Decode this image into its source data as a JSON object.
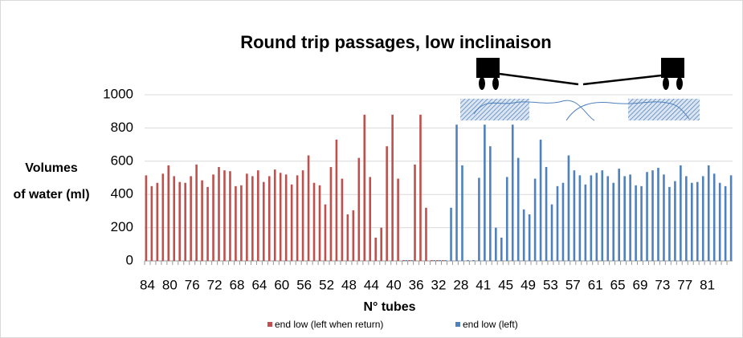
{
  "chart_data": {
    "type": "bar",
    "title": "Round trip passages, low inclinaison",
    "xlabel": "N° tubes",
    "ylabel": [
      "Volumes",
      "of water (ml)"
    ],
    "categories": [
      "84",
      null,
      null,
      null,
      "80",
      null,
      null,
      null,
      "76",
      null,
      null,
      null,
      "72",
      null,
      null,
      null,
      "68",
      null,
      null,
      null,
      "64",
      null,
      null,
      null,
      "60",
      null,
      null,
      null,
      "56",
      null,
      null,
      null,
      "52",
      null,
      null,
      null,
      "48",
      null,
      null,
      null,
      "44",
      null,
      null,
      null,
      "40",
      null,
      null,
      null,
      "36",
      null,
      null,
      null,
      "32",
      null,
      null,
      null,
      "28",
      null,
      null,
      null,
      "41",
      null,
      null,
      null,
      "45",
      null,
      null,
      null,
      "49",
      null,
      null,
      null,
      "53",
      null,
      null,
      null,
      "57",
      null,
      null,
      null,
      "61",
      null,
      null,
      null,
      "65",
      null,
      null,
      null,
      "69",
      null,
      null,
      null,
      "73",
      null,
      null,
      null,
      "77",
      null,
      null,
      null,
      "81",
      null,
      null,
      null,
      null
    ],
    "series": [
      {
        "name": "end low (left when return)",
        "color": "#c0504d",
        "values": [
          515,
          450,
          470,
          525,
          575,
          510,
          475,
          470,
          510,
          580,
          485,
          445,
          520,
          565,
          545,
          540,
          450,
          455,
          525,
          510,
          545,
          475,
          510,
          550,
          530,
          520,
          460,
          515,
          545,
          635,
          470,
          455,
          340,
          565,
          730,
          495,
          280,
          305,
          620,
          880,
          505,
          140,
          200,
          690,
          880,
          495,
          5,
          5,
          580,
          880,
          320,
          5,
          5,
          5,
          null,
          null,
          null,
          null,
          null,
          null,
          null,
          null,
          null,
          null,
          null,
          null,
          null,
          null,
          null,
          null,
          null,
          null,
          null,
          null,
          null,
          null,
          null,
          null,
          null,
          null,
          null,
          null,
          null,
          null,
          null,
          null,
          null,
          null,
          null,
          null,
          null,
          null,
          null,
          null,
          null,
          null,
          null,
          null,
          null,
          null,
          null,
          null,
          null,
          null,
          null
        ]
      },
      {
        "name": "end low (left)",
        "color": "#4f81bd",
        "values": [
          null,
          null,
          null,
          null,
          null,
          null,
          null,
          null,
          null,
          null,
          null,
          null,
          null,
          null,
          null,
          null,
          null,
          null,
          null,
          null,
          null,
          null,
          null,
          null,
          null,
          null,
          null,
          null,
          null,
          null,
          null,
          null,
          null,
          null,
          null,
          null,
          null,
          null,
          null,
          null,
          null,
          null,
          null,
          null,
          null,
          null,
          5,
          5,
          null,
          null,
          null,
          5,
          5,
          5,
          320,
          820,
          575,
          5,
          5,
          500,
          820,
          690,
          200,
          140,
          505,
          820,
          620,
          310,
          280,
          495,
          730,
          565,
          340,
          450,
          470,
          635,
          545,
          515,
          460,
          515,
          530,
          545,
          510,
          470,
          555,
          510,
          520,
          455,
          450,
          535,
          545,
          560,
          520,
          445,
          480,
          575,
          510,
          470,
          475,
          510,
          575,
          525,
          470,
          450,
          515
        ]
      }
    ],
    "ylim": [
      0,
      1000
    ],
    "yticks": [
      0,
      200,
      400,
      600,
      800,
      1000
    ],
    "grid": true,
    "legend": "bottom"
  }
}
